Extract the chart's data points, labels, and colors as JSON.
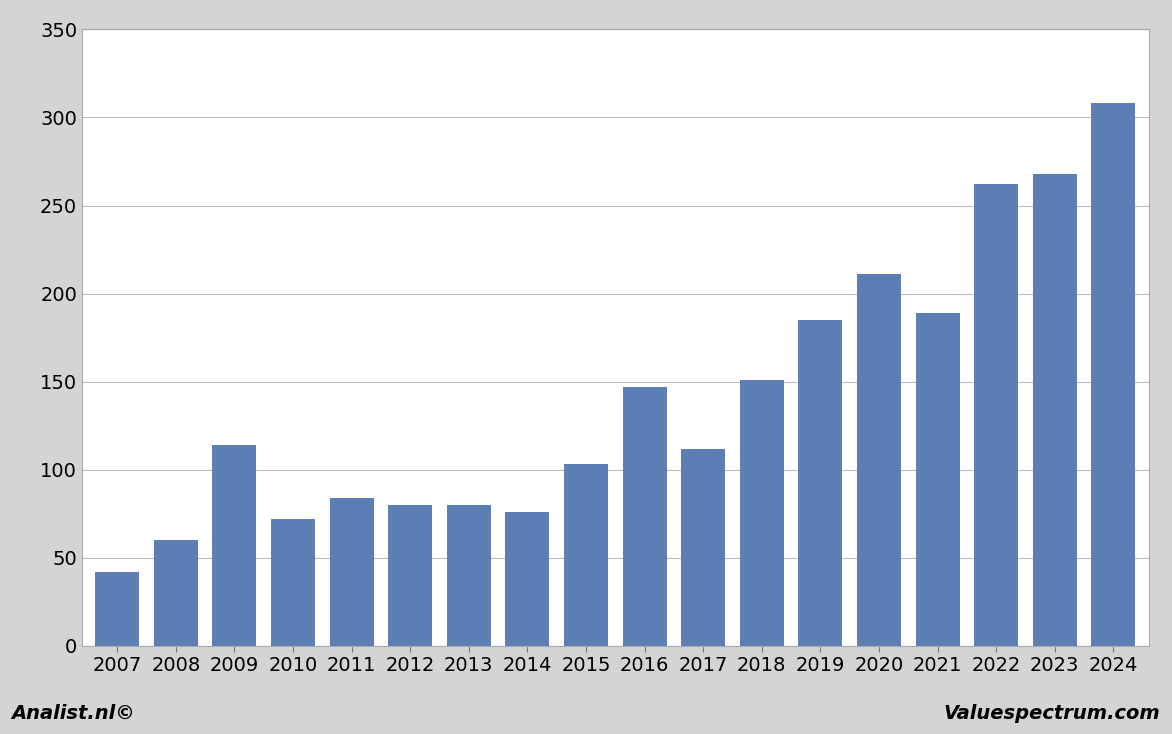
{
  "years": [
    2007,
    2008,
    2009,
    2010,
    2011,
    2012,
    2013,
    2014,
    2015,
    2016,
    2017,
    2018,
    2019,
    2020,
    2021,
    2022,
    2023,
    2024
  ],
  "values": [
    42,
    60,
    114,
    72,
    84,
    80,
    80,
    76,
    103,
    147,
    112,
    151,
    185,
    211,
    189,
    262,
    268,
    308
  ],
  "bar_color": "#5b7eb5",
  "background_color": "#d4d4d4",
  "plot_background_color": "#ffffff",
  "grid_color": "#bbbbbb",
  "border_color": "#aaaaaa",
  "ylim": [
    0,
    350
  ],
  "yticks": [
    0,
    50,
    100,
    150,
    200,
    250,
    300,
    350
  ],
  "tick_fontsize": 14,
  "footer_left": "Analist.nl©",
  "footer_right": "Valuespectrum.com",
  "footer_fontsize": 14
}
